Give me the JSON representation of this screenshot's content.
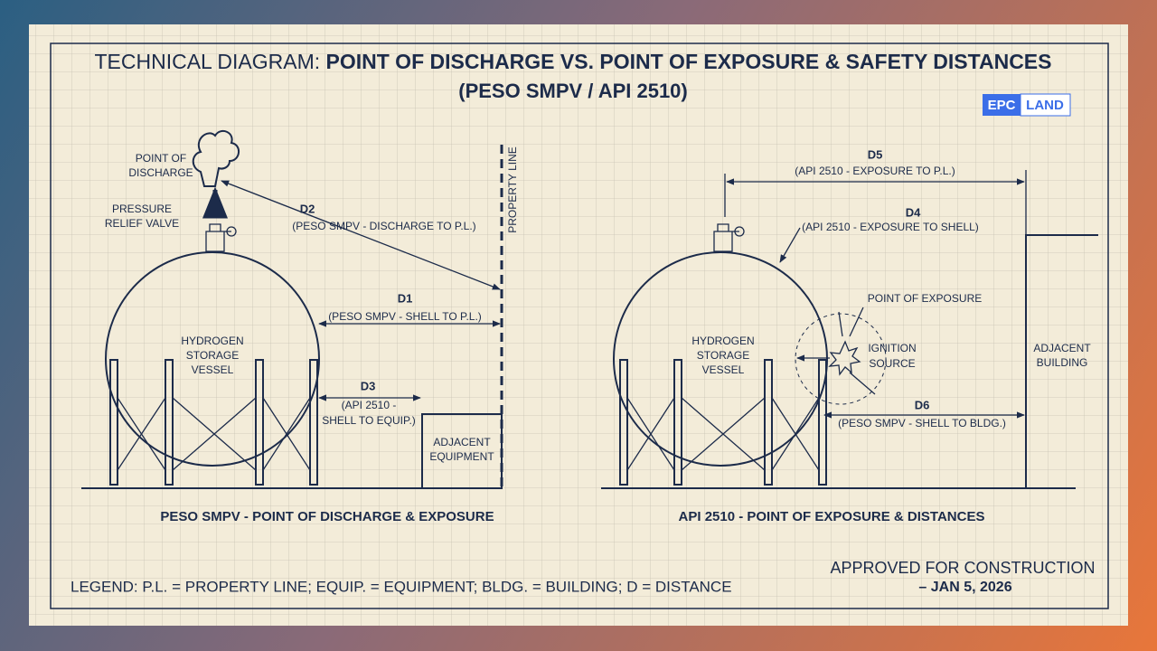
{
  "header": {
    "title_prefix": "TECHNICAL DIAGRAM:",
    "title_main": "POINT OF DISCHARGE VS. POINT OF EXPOSURE & SAFETY DISTANCES",
    "subtitle": "(PESO SMPV / API 2510)"
  },
  "logo": {
    "left": "EPC",
    "right": "LAND"
  },
  "left_panel": {
    "discharge": [
      "POINT OF",
      "DISCHARGE"
    ],
    "valve": [
      "PRESSURE",
      "RELIEF VALVE"
    ],
    "vessel": [
      "HYDROGEN",
      "STORAGE",
      "VESSEL"
    ],
    "property_line": "PROPERTY LINE",
    "d2": {
      "label": "D2",
      "note": "(PESO SMPV - DISCHARGE TO P.L.)"
    },
    "d1": {
      "label": "D1",
      "note": "(PESO SMPV - SHELL TO P.L.)"
    },
    "d3": {
      "label": "D3",
      "note": [
        "(API 2510 -",
        "SHELL TO EQUIP.)"
      ]
    },
    "equipment": [
      "ADJACENT",
      "EQUIPMENT"
    ],
    "caption": "PESO SMPV - POINT OF DISCHARGE & EXPOSURE"
  },
  "right_panel": {
    "vessel": [
      "HYDROGEN",
      "STORAGE",
      "VESSEL"
    ],
    "d5": {
      "label": "D5",
      "note": "(API 2510 - EXPOSURE TO P.L.)"
    },
    "d4": {
      "label": "D4",
      "note": "(API 2510 - EXPOSURE TO SHELL)"
    },
    "exposure": "POINT OF EXPOSURE",
    "ignition": [
      "IGNITION",
      "SOURCE"
    ],
    "building": [
      "ADJACENT",
      "BUILDING"
    ],
    "d6": {
      "label": "D6",
      "note": "(PESO SMPV - SHELL TO BLDG.)"
    },
    "caption": "API 2510 - POINT OF EXPOSURE & DISTANCES"
  },
  "legend": "LEGEND: P.L. = PROPERTY LINE; EQUIP. = EQUIPMENT; BLDG. = BUILDING; D = DISTANCE",
  "approval": [
    "APPROVED FOR CONSTRUCTION",
    "– JAN 5, 2026"
  ]
}
